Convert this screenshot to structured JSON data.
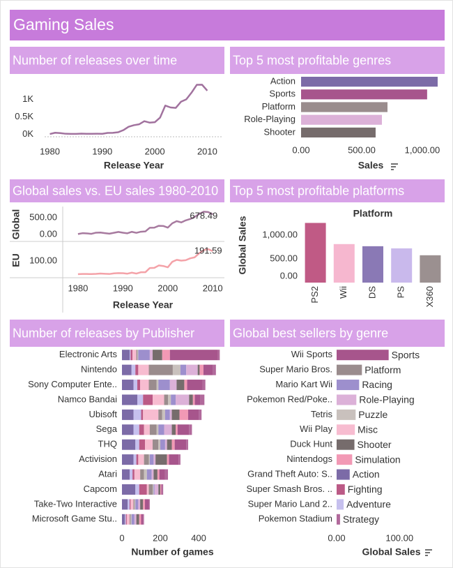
{
  "title": "Gaming Sales",
  "chart_data": [
    {
      "type": "line",
      "title": "Number of releases over time",
      "xlabel": "Release Year",
      "color": "#a1729e",
      "x": [
        1980,
        1981,
        1982,
        1983,
        1984,
        1985,
        1986,
        1987,
        1988,
        1989,
        1990,
        1991,
        1992,
        1993,
        1994,
        1995,
        1996,
        1997,
        1998,
        1999,
        2000,
        2001,
        2002,
        2003,
        2004,
        2005,
        2006,
        2007,
        2008,
        2009,
        2010
      ],
      "values": [
        9,
        46,
        36,
        17,
        14,
        14,
        21,
        16,
        15,
        17,
        16,
        41,
        43,
        60,
        121,
        219,
        263,
        289,
        379,
        338,
        349,
        482,
        829,
        775,
        763,
        941,
        1008,
        1202,
        1428,
        1431,
        1259
      ],
      "xlim": [
        1979,
        2013
      ],
      "xticks": [
        1980,
        1990,
        2000,
        2010
      ],
      "ylim": [
        -110,
        1700
      ],
      "yticks": [
        {
          "value": 0,
          "label": "0K"
        },
        {
          "value": 500,
          "label": "0.5K"
        },
        {
          "value": 1000,
          "label": "1K"
        }
      ]
    },
    {
      "type": "bar",
      "orientation": "horizontal",
      "title": "Top 5 most profitable genres",
      "xlabel": "Sales",
      "categories": [
        "Action",
        "Sports",
        "Platform",
        "Role-Playing",
        "Shooter"
      ],
      "values": [
        1127,
        1040,
        713,
        667,
        615
      ],
      "colors": [
        "#7c6ba7",
        "#a7558c",
        "#9a8c8d",
        "#dcb1d8",
        "#766c6c"
      ],
      "xlim": [
        0,
        1150
      ],
      "xticks": [
        {
          "value": 0,
          "label": "0.00"
        },
        {
          "value": 500,
          "label": "500.00"
        },
        {
          "value": 1000,
          "label": "1,000.00"
        }
      ]
    },
    {
      "type": "line",
      "title": "Global sales vs. EU sales 1980-2010",
      "xlabel": "Release Year",
      "x": [
        1980,
        1981,
        1982,
        1983,
        1984,
        1985,
        1986,
        1987,
        1988,
        1989,
        1990,
        1991,
        1992,
        1993,
        1994,
        1995,
        1996,
        1997,
        1998,
        1999,
        2000,
        2001,
        2002,
        2003,
        2004,
        2005,
        2006,
        2007,
        2008,
        2009,
        2010
      ],
      "xlim": [
        1976.6,
        2012.3
      ],
      "xticks": [
        1980,
        1990,
        2000,
        2010
      ],
      "panels": [
        {
          "ylabel": "Global",
          "color": "#a77a9f",
          "ylim": [
            -190,
            790
          ],
          "yticks": [
            {
              "value": 0,
              "label": "0.00"
            },
            {
              "value": 500,
              "label": "500.00"
            }
          ],
          "values": [
            11.38,
            35.77,
            28.86,
            16.79,
            50.36,
            53.94,
            37.07,
            21.74,
            47.22,
            73.45,
            49.39,
            32.23,
            76.16,
            45.98,
            79.17,
            88.11,
            199.15,
            200.98,
            256.47,
            251.27,
            201.56,
            331.47,
            395.52,
            357.85,
            419.31,
            459.94,
            521.04,
            611.13,
            678.49,
            667.3,
            600.45
          ]
        },
        {
          "ylabel": "EU",
          "color": "#f4a2a8",
          "ylim": [
            -27,
            240
          ],
          "yticks": [
            {
              "value": 100,
              "label": "100.00"
            }
          ],
          "values": [
            0.67,
            1.96,
            1.65,
            0.8,
            2.1,
            4.74,
            2.84,
            1.41,
            6.59,
            8.44,
            7.63,
            3.95,
            11.71,
            4.65,
            14.88,
            14.9,
            47.26,
            48.32,
            66.9,
            62.67,
            52.75,
            94.89,
            109.74,
            103.81,
            107.32,
            121.55,
            129.24,
            160.18,
            184.4,
            191.59,
            176.57
          ]
        }
      ]
    },
    {
      "type": "bar",
      "orientation": "vertical",
      "title": "Top 5 most profitable platforms",
      "xlabel": "Platform",
      "ylabel": "Global Sales",
      "categories": [
        "PS2",
        "Wii",
        "DS",
        "PS",
        "X360"
      ],
      "values": [
        1255,
        810,
        765,
        720,
        575
      ],
      "colors": [
        "#c05a85",
        "#f6b7cf",
        "#8a79b5",
        "#c9b9ec",
        "#9b9090"
      ],
      "ylim": [
        0,
        1570
      ],
      "yticks": [
        {
          "value": 0,
          "label": "0.00"
        },
        {
          "value": 500,
          "label": "500.00"
        },
        {
          "value": 1000,
          "label": "1,000.00"
        }
      ]
    },
    {
      "type": "bar",
      "orientation": "horizontal",
      "title": "Number of releases by Publisher",
      "xlabel": "Number of games",
      "categories": [
        "Electronic Arts",
        "Nintendo",
        "Sony Computer Ente..",
        "Namco Bandai",
        "Ubisoft",
        "Sega",
        "THQ",
        "Activision",
        "Atari",
        "Capcom",
        "Take-Two Interactive",
        "Microsoft Game Stu.."
      ],
      "series": [
        {
          "name": "Action",
          "color": "#7c6ba7",
          "values": [
            40,
            50,
            60,
            80,
            60,
            60,
            70,
            60,
            40,
            70,
            30,
            15
          ]
        },
        {
          "name": "Adventure",
          "color": "#c6c0ee",
          "values": [
            5,
            20,
            20,
            30,
            40,
            30,
            20,
            15,
            15,
            20,
            10,
            5
          ]
        },
        {
          "name": "Fighting",
          "color": "#bb5a86",
          "values": [
            10,
            15,
            15,
            50,
            10,
            25,
            30,
            10,
            10,
            40,
            5,
            5
          ]
        },
        {
          "name": "Misc",
          "color": "#f7bcd0",
          "values": [
            20,
            55,
            45,
            60,
            80,
            30,
            40,
            30,
            30,
            10,
            15,
            15
          ]
        },
        {
          "name": "Platform",
          "color": "#9a8c8d",
          "values": [
            5,
            125,
            40,
            20,
            20,
            35,
            30,
            25,
            20,
            20,
            5,
            5
          ]
        },
        {
          "name": "Puzzle",
          "color": "#c9c1bd",
          "values": [
            5,
            40,
            10,
            15,
            15,
            10,
            10,
            5,
            15,
            5,
            5,
            5
          ]
        },
        {
          "name": "Racing",
          "color": "#9d8fcd",
          "values": [
            60,
            30,
            60,
            25,
            25,
            30,
            25,
            20,
            25,
            5,
            15,
            15
          ]
        },
        {
          "name": "Role-Playing",
          "color": "#dcb1d8",
          "values": [
            15,
            60,
            35,
            70,
            10,
            40,
            10,
            10,
            10,
            20,
            10,
            10
          ]
        },
        {
          "name": "Shooter",
          "color": "#766c6c",
          "values": [
            50,
            10,
            40,
            20,
            40,
            20,
            25,
            60,
            20,
            10,
            15,
            15
          ]
        },
        {
          "name": "Simulation",
          "color": "#f299b5",
          "values": [
            40,
            20,
            15,
            10,
            45,
            10,
            15,
            10,
            10,
            5,
            10,
            10
          ]
        },
        {
          "name": "Sports",
          "color": "#a7558c",
          "values": [
            250,
            50,
            80,
            30,
            55,
            60,
            60,
            50,
            30,
            5,
            20,
            10
          ]
        },
        {
          "name": "Strategy",
          "color": "#b1699b",
          "values": [
            10,
            15,
            15,
            20,
            15,
            15,
            10,
            10,
            15,
            5,
            5,
            5
          ]
        }
      ],
      "xlim": [
        0,
        527
      ],
      "xticks": [
        0,
        200,
        400
      ]
    },
    {
      "type": "bar",
      "orientation": "horizontal",
      "title": "Global best sellers by genre",
      "xlabel": "Global Sales",
      "categories": [
        "Wii Sports",
        "Super Mario Bros.",
        "Mario Kart Wii",
        "Pokemon Red/Poke..",
        "Tetris",
        "Wii Play",
        "Duck Hunt",
        "Nintendogs",
        "Grand Theft Auto: S..",
        "Super Smash Bros. ..",
        "Super Mario Land 2..",
        "Pokemon Stadium"
      ],
      "values": [
        82.74,
        40.24,
        35.82,
        31.37,
        30.26,
        29.02,
        28.31,
        24.76,
        20.81,
        13.04,
        11.18,
        5.45
      ],
      "genres": [
        "Sports",
        "Platform",
        "Racing",
        "Role-Playing",
        "Puzzle",
        "Misc",
        "Shooter",
        "Simulation",
        "Action",
        "Fighting",
        "Adventure",
        "Strategy"
      ],
      "colors": [
        "#a7558c",
        "#9a8c8d",
        "#9d8fcd",
        "#dcb1d8",
        "#c9c1bd",
        "#f7bcd0",
        "#766c6c",
        "#f299b5",
        "#7c6ba7",
        "#bb5a86",
        "#c6c0ee",
        "#b1699b"
      ],
      "xlim": [
        0,
        174
      ],
      "xticks": [
        {
          "value": 0,
          "label": "0.00"
        },
        {
          "value": 100,
          "label": "100.00"
        }
      ]
    }
  ]
}
